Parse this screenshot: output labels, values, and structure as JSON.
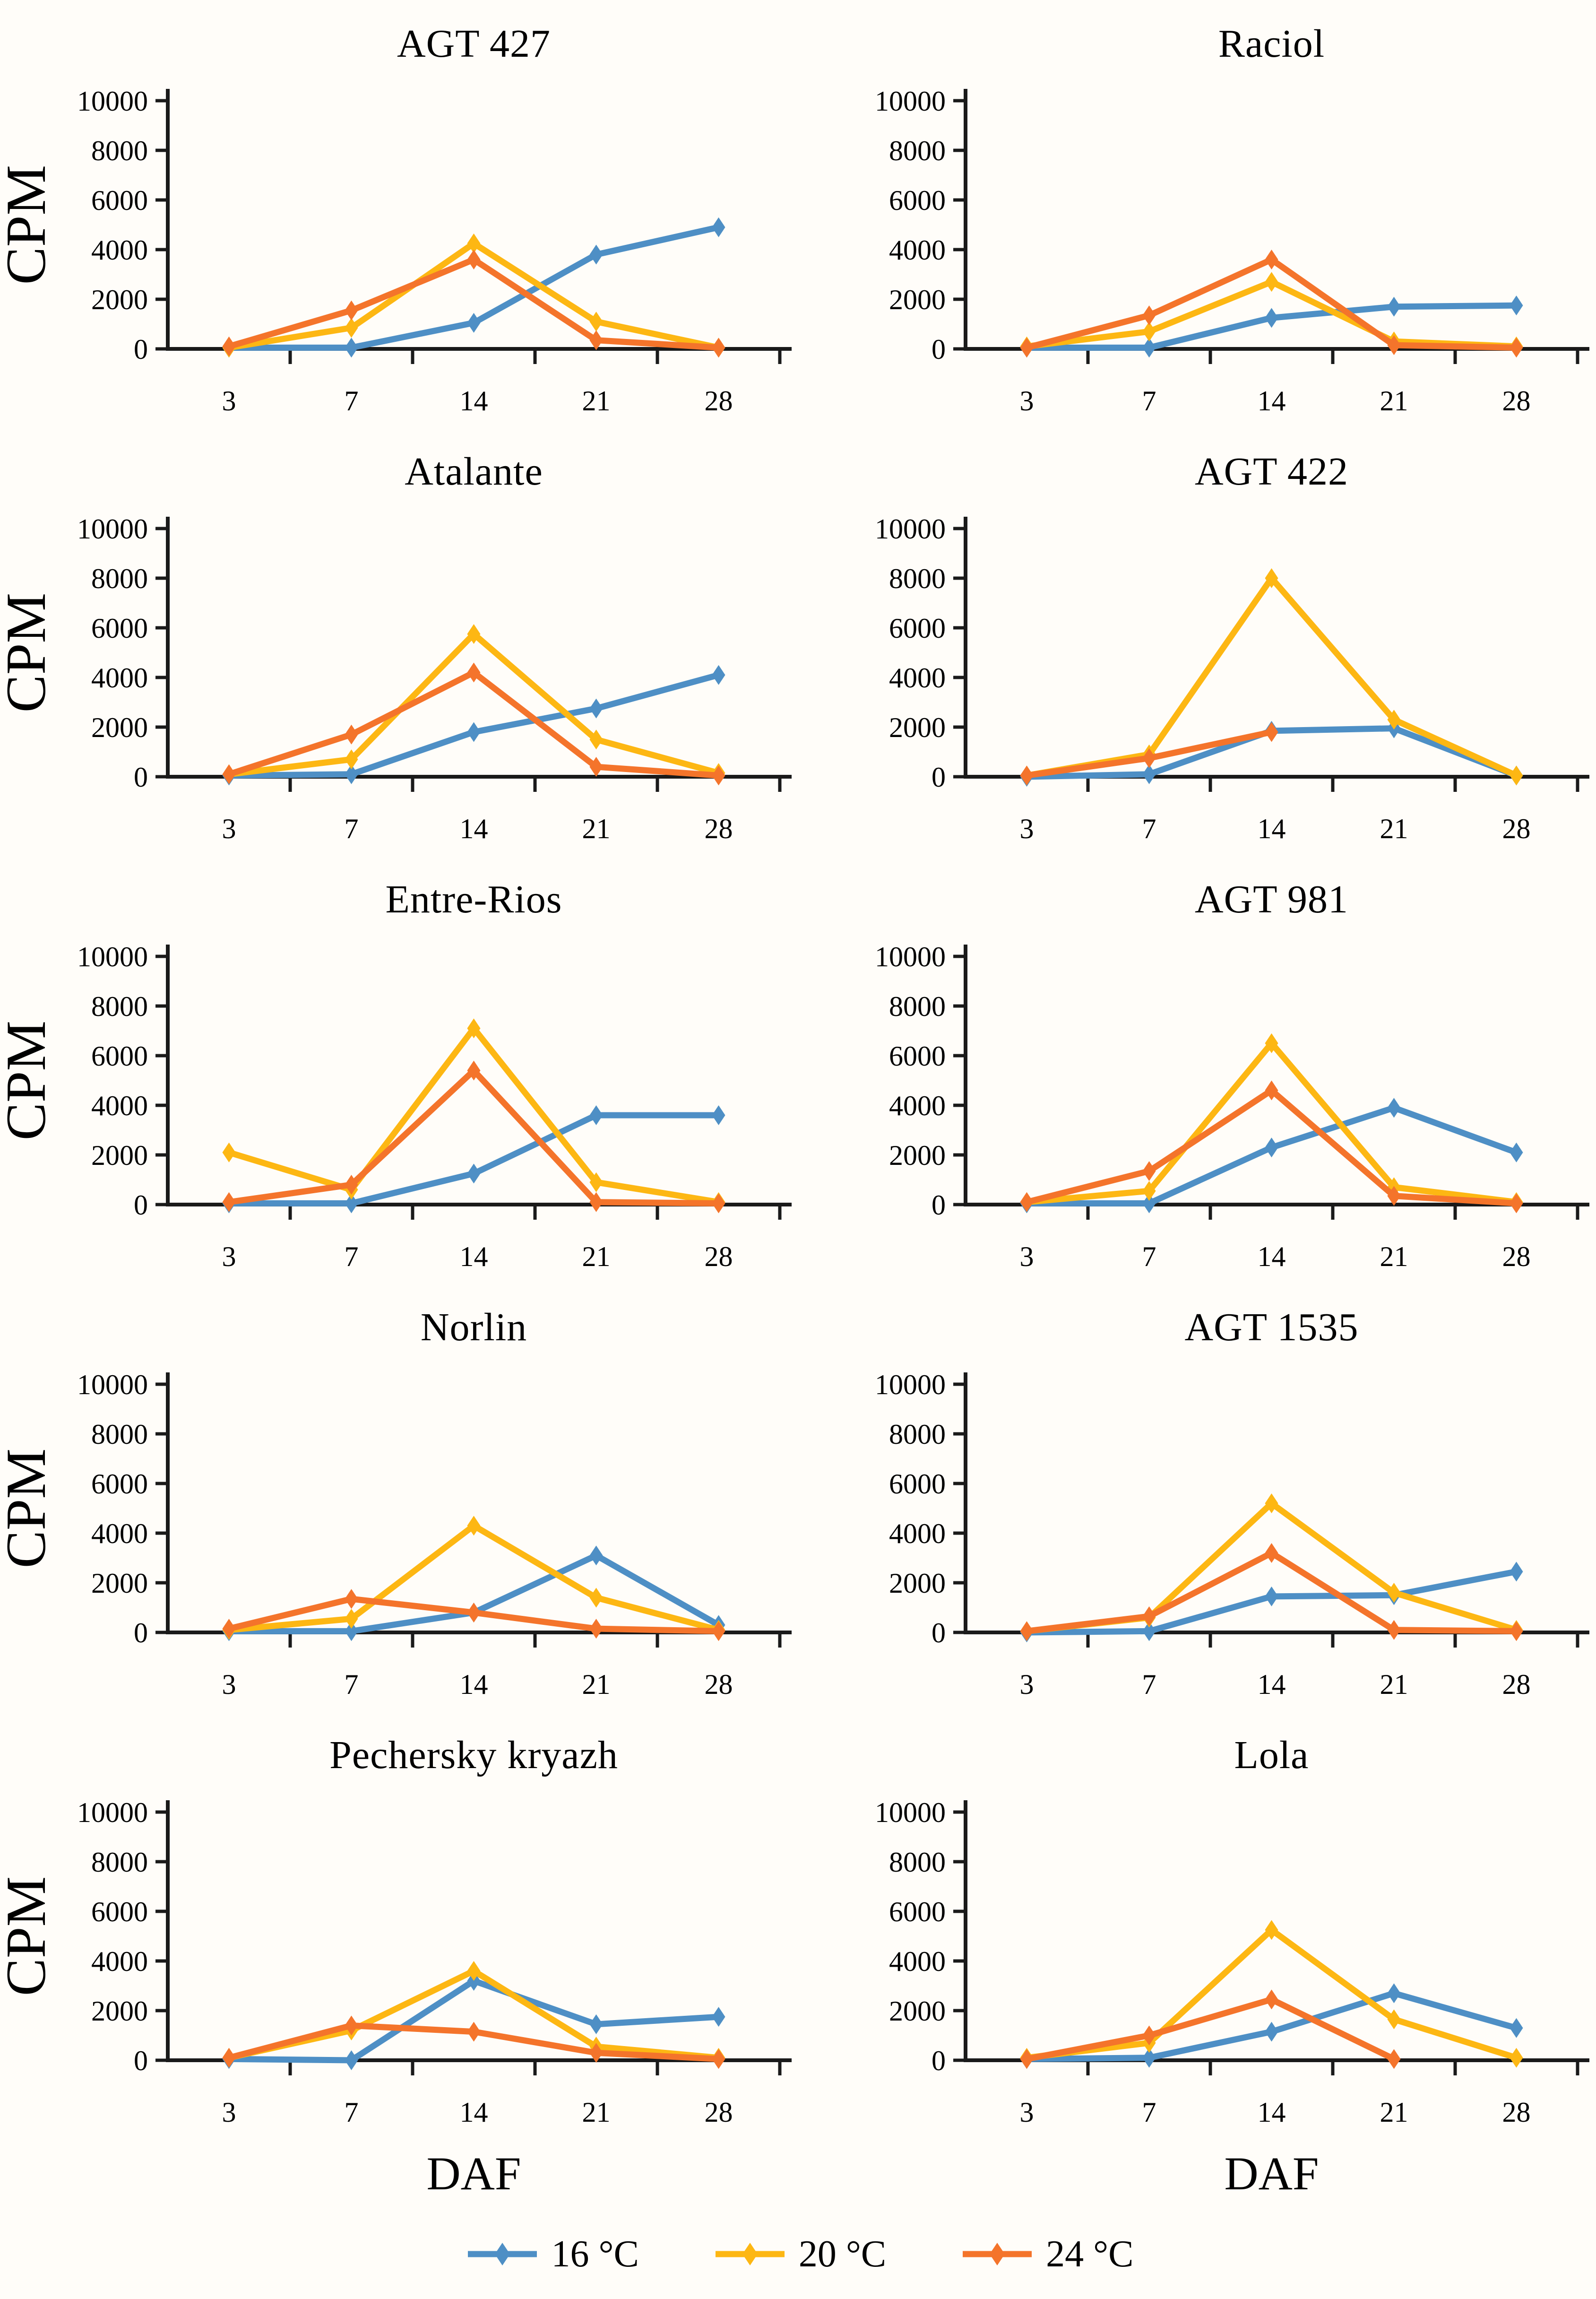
{
  "axis": {
    "ylabel": "CPM",
    "xlabel": "DAF",
    "ymin": 0,
    "ymax": 10000,
    "yticks": [
      0,
      2000,
      4000,
      6000,
      8000,
      10000
    ],
    "categories": [
      "3",
      "7",
      "14",
      "21",
      "28"
    ],
    "grid": false
  },
  "legend": [
    {
      "label": "16 °C",
      "color": "#4E8FC5"
    },
    {
      "label": "20 °C",
      "color": "#FDB713"
    },
    {
      "label": "24 °C",
      "color": "#F4742B"
    }
  ],
  "colors": {
    "blue_16c": "#4E8FC5",
    "yellow_20c": "#FDB713",
    "orange_24c": "#F4742B",
    "axis_black": "#1A1A1A",
    "background": "#FFFDF9"
  },
  "chart_data": [
    {
      "type": "line",
      "title": "AGT 427",
      "ylim": [
        0,
        10000
      ],
      "categories": [
        "3",
        "7",
        "14",
        "21",
        "28"
      ],
      "series": [
        {
          "name": "16 °C",
          "color": "#4E8FC5",
          "values": [
            50,
            50,
            1050,
            3800,
            4900
          ]
        },
        {
          "name": "20 °C",
          "color": "#FDB713",
          "values": [
            50,
            850,
            4250,
            1100,
            50
          ]
        },
        {
          "name": "24 °C",
          "color": "#F4742B",
          "values": [
            100,
            1550,
            3600,
            350,
            50
          ]
        }
      ]
    },
    {
      "type": "line",
      "title": "Raciol",
      "ylim": [
        0,
        10000
      ],
      "categories": [
        "3",
        "7",
        "14",
        "21",
        "28"
      ],
      "series": [
        {
          "name": "16 °C",
          "color": "#4E8FC5",
          "values": [
            50,
            50,
            1250,
            1700,
            1750
          ]
        },
        {
          "name": "20 °C",
          "color": "#FDB713",
          "values": [
            100,
            700,
            2700,
            300,
            100
          ]
        },
        {
          "name": "24 °C",
          "color": "#F4742B",
          "values": [
            50,
            1350,
            3600,
            150,
            50
          ]
        }
      ]
    },
    {
      "type": "line",
      "title": "Atalante",
      "ylim": [
        0,
        10000
      ],
      "categories": [
        "3",
        "7",
        "14",
        "21",
        "28"
      ],
      "series": [
        {
          "name": "16 °C",
          "color": "#4E8FC5",
          "values": [
            50,
            100,
            1800,
            2750,
            4100
          ]
        },
        {
          "name": "20 °C",
          "color": "#FDB713",
          "values": [
            100,
            700,
            5750,
            1500,
            150
          ]
        },
        {
          "name": "24 °C",
          "color": "#F4742B",
          "values": [
            100,
            1700,
            4200,
            400,
            50
          ]
        }
      ]
    },
    {
      "type": "line",
      "title": "AGT 422",
      "ylim": [
        0,
        10000
      ],
      "categories": [
        "3",
        "7",
        "14",
        "21",
        "28"
      ],
      "series": [
        {
          "name": "16 °C",
          "color": "#4E8FC5",
          "values": [
            0,
            100,
            1850,
            1950,
            50
          ]
        },
        {
          "name": "20 °C",
          "color": "#FDB713",
          "values": [
            50,
            900,
            8000,
            2300,
            50
          ]
        },
        {
          "name": "24 °C",
          "color": "#F4742B",
          "values": [
            50,
            750,
            1800,
            null,
            null
          ]
        }
      ]
    },
    {
      "type": "line",
      "title": "Entre-Rios",
      "ylim": [
        0,
        10000
      ],
      "categories": [
        "3",
        "7",
        "14",
        "21",
        "28"
      ],
      "series": [
        {
          "name": "16 °C",
          "color": "#4E8FC5",
          "values": [
            50,
            50,
            1250,
            3600,
            3600
          ]
        },
        {
          "name": "20 °C",
          "color": "#FDB713",
          "values": [
            2100,
            600,
            7100,
            900,
            100
          ]
        },
        {
          "name": "24 °C",
          "color": "#F4742B",
          "values": [
            100,
            800,
            5400,
            100,
            50
          ]
        }
      ]
    },
    {
      "type": "line",
      "title": "AGT 981",
      "ylim": [
        0,
        10000
      ],
      "categories": [
        "3",
        "7",
        "14",
        "21",
        "28"
      ],
      "series": [
        {
          "name": "16 °C",
          "color": "#4E8FC5",
          "values": [
            50,
            50,
            2300,
            3900,
            2100
          ]
        },
        {
          "name": "20 °C",
          "color": "#FDB713",
          "values": [
            100,
            550,
            6500,
            700,
            100
          ]
        },
        {
          "name": "24 °C",
          "color": "#F4742B",
          "values": [
            100,
            1350,
            4600,
            350,
            50
          ]
        }
      ]
    },
    {
      "type": "line",
      "title": "Norlin",
      "ylim": [
        0,
        10000
      ],
      "categories": [
        "3",
        "7",
        "14",
        "21",
        "28"
      ],
      "series": [
        {
          "name": "16 °C",
          "color": "#4E8FC5",
          "values": [
            50,
            50,
            800,
            3100,
            300
          ]
        },
        {
          "name": "20 °C",
          "color": "#FDB713",
          "values": [
            100,
            550,
            4300,
            1400,
            100
          ]
        },
        {
          "name": "24 °C",
          "color": "#F4742B",
          "values": [
            150,
            1350,
            800,
            150,
            50
          ]
        }
      ]
    },
    {
      "type": "line",
      "title": "AGT 1535",
      "ylim": [
        0,
        10000
      ],
      "categories": [
        "3",
        "7",
        "14",
        "21",
        "28"
      ],
      "series": [
        {
          "name": "16 °C",
          "color": "#4E8FC5",
          "values": [
            0,
            50,
            1450,
            1500,
            2450
          ]
        },
        {
          "name": "20 °C",
          "color": "#FDB713",
          "values": [
            50,
            600,
            5200,
            1600,
            100
          ]
        },
        {
          "name": "24 °C",
          "color": "#F4742B",
          "values": [
            50,
            650,
            3200,
            100,
            50
          ]
        }
      ]
    },
    {
      "type": "line",
      "title": "Pechersky kryazh",
      "ylim": [
        0,
        10000
      ],
      "categories": [
        "3",
        "7",
        "14",
        "21",
        "28"
      ],
      "series": [
        {
          "name": "16 °C",
          "color": "#4E8FC5",
          "values": [
            50,
            0,
            3200,
            1450,
            1750
          ]
        },
        {
          "name": "20 °C",
          "color": "#FDB713",
          "values": [
            100,
            1200,
            3600,
            550,
            100
          ]
        },
        {
          "name": "24 °C",
          "color": "#F4742B",
          "values": [
            100,
            1400,
            1150,
            300,
            50
          ]
        }
      ]
    },
    {
      "type": "line",
      "title": "Lola",
      "ylim": [
        0,
        10000
      ],
      "categories": [
        "3",
        "7",
        "14",
        "21",
        "28"
      ],
      "series": [
        {
          "name": "16 °C",
          "color": "#4E8FC5",
          "values": [
            50,
            100,
            1150,
            2700,
            1300
          ]
        },
        {
          "name": "20 °C",
          "color": "#FDB713",
          "values": [
            100,
            700,
            5250,
            1650,
            100
          ]
        },
        {
          "name": "24 °C",
          "color": "#F4742B",
          "values": [
            50,
            1000,
            2450,
            50,
            null
          ]
        }
      ]
    }
  ]
}
